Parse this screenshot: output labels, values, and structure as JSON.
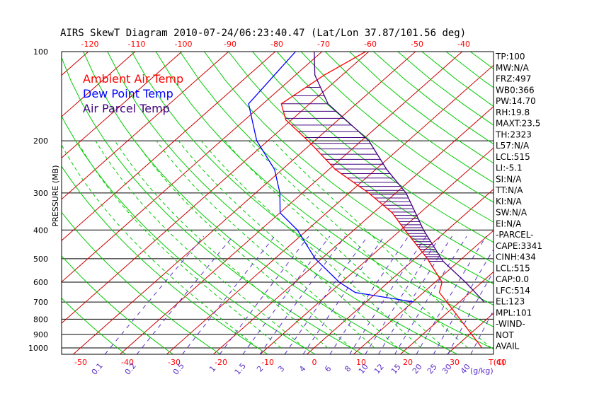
{
  "chart_data": {
    "type": "line",
    "title": "AIRS SkewT Diagram 2010-07-24/06:23:40.47 (Lat/Lon 37.87/101.56 deg)",
    "ylabel": "PRESSURE (MB)",
    "xlabel": "T(C)",
    "mixing_ratio_unit": "(g/kg)",
    "y_scale": "log",
    "ylim": [
      1000,
      100
    ],
    "pressure_ticks": [
      100,
      200,
      300,
      400,
      500,
      600,
      700,
      800,
      900,
      1000
    ],
    "top_temp_ticks": [
      -120,
      -110,
      -100,
      -90,
      -80,
      -70,
      -60,
      -50,
      -40
    ],
    "bottom_temp_ticks": [
      -50,
      -40,
      -30,
      -20,
      -10,
      0,
      10,
      20,
      30,
      40
    ],
    "mixing_ratio_ticks": [
      "0.1",
      "0.2",
      "0.5",
      "1",
      "1.5",
      "2",
      "3",
      "4",
      "6",
      "8",
      "10",
      "12",
      "15",
      "20",
      "25",
      "30",
      "40"
    ],
    "legend": [
      "Ambient Air Temp",
      "Dew Point Temp",
      "Air Parcel Temp"
    ],
    "colors": {
      "temp": "#ff0000",
      "dewpoint": "#0000ff",
      "parcel": "#40007f",
      "dry_adiabat": "#00cc00",
      "isotherm": "#cc0000",
      "moist_adiabat": "#00cc00",
      "mixing_ratio": "#5a2ec8",
      "hatch": "#40007f"
    },
    "series": [
      {
        "name": "Ambient Air Temp",
        "points": [
          [
            1000,
            38
          ],
          [
            700,
            19
          ],
          [
            650,
            15
          ],
          [
            600,
            13
          ],
          [
            500,
            4
          ],
          [
            400,
            -8
          ],
          [
            350,
            -15
          ],
          [
            300,
            -25
          ],
          [
            250,
            -38
          ],
          [
            200,
            -51
          ],
          [
            170,
            -61
          ],
          [
            150,
            -66
          ],
          [
            120,
            -64
          ],
          [
            100,
            -61
          ]
        ]
      },
      {
        "name": "Dew Point Temp",
        "points": [
          [
            700,
            12
          ],
          [
            650,
            -3
          ],
          [
            600,
            -9
          ],
          [
            500,
            -20
          ],
          [
            400,
            -31
          ],
          [
            350,
            -39
          ],
          [
            300,
            -44
          ],
          [
            250,
            -51
          ],
          [
            200,
            -62
          ],
          [
            150,
            -73
          ],
          [
            100,
            -76
          ]
        ]
      },
      {
        "name": "Air Parcel Temp",
        "points": [
          [
            700,
            27
          ],
          [
            600,
            18
          ],
          [
            510,
            8
          ],
          [
            500,
            7
          ],
          [
            400,
            -4
          ],
          [
            300,
            -17
          ],
          [
            250,
            -27
          ],
          [
            200,
            -38
          ],
          [
            150,
            -56
          ],
          [
            120,
            -66
          ],
          [
            100,
            -72
          ]
        ]
      }
    ],
    "stats": [
      "TP:100",
      "MW:N/A",
      "FRZ:497",
      "WB0:366",
      "PW:14.70",
      "RH:19.8",
      "MAXT:23.5",
      "TH:2323",
      "L57:N/A",
      "LCL:515",
      "LI:-5.1",
      "SI:N/A",
      "TT:N/A",
      "KI:N/A",
      "SW:N/A",
      "EI:N/A",
      "-PARCEL-",
      "CAPE:3341",
      "CINH:434",
      "LCL:515",
      "CAP:0.0",
      "LFC:514",
      "EL:123",
      "MPL:101",
      "-WIND-",
      "NOT",
      "AVAIL"
    ]
  }
}
